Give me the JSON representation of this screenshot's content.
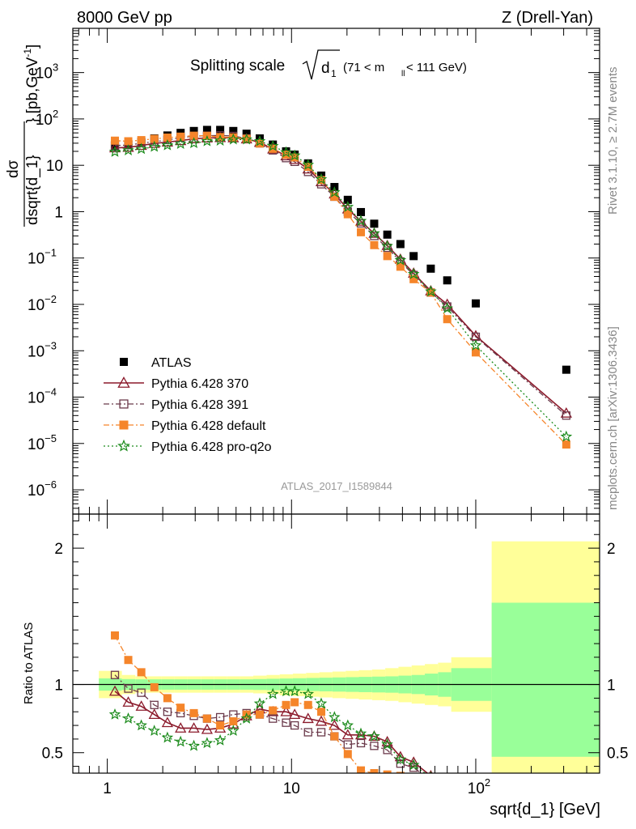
{
  "header": {
    "left": "8000 GeV pp",
    "right": "Z (Drell-Yan)"
  },
  "side_labels": {
    "rivet": "Rivet 3.1.10, ≥ 2.7M events",
    "mcplots": "mcplots.cern.ch [arXiv:1306.3436]"
  },
  "chart_data": [
    {
      "type": "scatter",
      "title": "Splitting scale √d₁ (71 < mₗₗ < 111 GeV)",
      "title_main": "Splitting scale",
      "title_sub": "(71 < m",
      "title_sub_idx": "ll",
      "title_sub_end": " < 111 GeV)",
      "ylabel": "dσ / dsqrt{d_1} [pb,GeV⁻¹]",
      "ylabel_num": "dσ",
      "ylabel_den": "dsqrt{d_1}",
      "ylabel_unit": "[pb,GeV",
      "ylabel_exp": "-1",
      "ylabel_close": "]",
      "xscale": "log",
      "yscale": "log",
      "xlim": [
        0.65,
        470
      ],
      "ylim": [
        3e-07,
        9000
      ],
      "watermark": "ATLAS_2017_I1589844",
      "legend_position": "bottom-left",
      "x_ticks": [
        {
          "value": 1,
          "label": "1"
        },
        {
          "value": 10,
          "label": "10"
        }
      ],
      "x_tick_100": {
        "value": 100,
        "base": "10",
        "exp": "2"
      },
      "y_ticks": [
        {
          "value": 1e-06,
          "base": "10",
          "exp": "−6"
        },
        {
          "value": 1e-05,
          "base": "10",
          "exp": "−5"
        },
        {
          "value": 0.0001,
          "base": "10",
          "exp": "−4"
        },
        {
          "value": 0.001,
          "base": "10",
          "exp": "−3"
        },
        {
          "value": 0.01,
          "base": "10",
          "exp": "−2"
        },
        {
          "value": 0.1,
          "base": "10",
          "exp": "−1"
        },
        {
          "value": 1,
          "base": "1",
          "exp": ""
        },
        {
          "value": 10,
          "base": "10",
          "exp": ""
        },
        {
          "value": 100,
          "base": "10",
          "exp": "2"
        },
        {
          "value": 1000,
          "base": "10",
          "exp": "3"
        }
      ],
      "x": [
        1.1,
        1.3,
        1.53,
        1.8,
        2.12,
        2.5,
        2.95,
        3.48,
        4.1,
        4.83,
        5.7,
        6.72,
        7.92,
        9.34,
        10.4,
        12.3,
        14.5,
        17.1,
        20.2,
        23.8,
        28.1,
        33.1,
        39.0,
        46.0,
        57.0,
        70.0,
        100.0,
        310.0
      ],
      "series": [
        {
          "name": "ATLAS",
          "color": "#000000",
          "marker": "square-filled",
          "values": [
            25,
            28,
            32,
            38,
            44,
            50,
            55,
            58,
            58,
            55,
            48,
            38,
            28,
            20,
            17,
            11,
            6,
            3.4,
            1.8,
            0.98,
            0.55,
            0.32,
            0.2,
            0.11,
            0.059,
            0.033,
            0.0105,
            0.00039
          ]
        },
        {
          "name": "Pythia 6.428 370",
          "color": "#8b1a2b",
          "marker": "triangle-open",
          "line": "solid",
          "values": [
            23.7,
            24.3,
            26.8,
            29.6,
            31.7,
            34.0,
            37.4,
            38.9,
            39.4,
            39.1,
            37.0,
            31.2,
            22.4,
            16.0,
            13.3,
            8.3,
            4.4,
            2.4,
            1.14,
            0.62,
            0.339,
            0.186,
            0.094,
            0.047,
            0.0195,
            0.01,
            0.0021,
            4.5e-05
          ]
        },
        {
          "name": "Pythia 6.428 391",
          "color": "#6b3a4b",
          "marker": "square-open",
          "line": "dashdot",
          "values": [
            26.8,
            27.2,
            30.1,
            32.3,
            35.2,
            39.5,
            42.5,
            43.5,
            44.1,
            42.9,
            37.9,
            29.7,
            21.0,
            14.3,
            11.9,
            7.2,
            3.9,
            2.1,
            1.0,
            0.56,
            0.3,
            0.166,
            0.084,
            0.043,
            0.018,
            0.009,
            0.002,
            4e-05
          ]
        },
        {
          "name": "Pythia 6.428 default",
          "color": "#f5852a",
          "marker": "square-filled",
          "line": "dashdot",
          "values": [
            34.0,
            33.0,
            34.9,
            37.2,
            39.6,
            41.5,
            43.5,
            43.3,
            40.6,
            40.0,
            37.4,
            29.6,
            22.7,
            17.0,
            14.8,
            9.3,
            4.8,
            2.1,
            0.88,
            0.36,
            0.19,
            0.11,
            0.065,
            0.035,
            0.018,
            0.0048,
            0.00092,
            9.5e-06
          ]
        },
        {
          "name": "Pythia 6.428 pro-q2o",
          "color": "#1a8a1a",
          "marker": "star-open",
          "line": "dotted",
          "values": [
            19.5,
            21.0,
            22.5,
            25.0,
            27.0,
            29.0,
            30.0,
            33.0,
            34.0,
            36.0,
            36.0,
            33.0,
            26.0,
            19.0,
            16.2,
            10.2,
            5.0,
            2.6,
            1.26,
            0.63,
            0.34,
            0.18,
            0.09,
            0.045,
            0.019,
            0.0082,
            0.0013,
            1.4e-05
          ]
        }
      ]
    },
    {
      "type": "scatter",
      "ylabel": "Ratio to ATLAS",
      "xlabel": "sqrt{d_1} [GeV]",
      "xscale": "log",
      "ylim": [
        0.35,
        2.25
      ],
      "reference_line": 1,
      "y_ticks": [
        {
          "value": 0.5,
          "label": "0.5"
        },
        {
          "value": 1,
          "label": "1"
        },
        {
          "value": 2,
          "label": "2"
        }
      ],
      "bands": {
        "edges": [
          0.9,
          1.2,
          1.42,
          1.66,
          1.96,
          2.31,
          2.73,
          3.22,
          3.79,
          4.47,
          5.27,
          6.2,
          7.32,
          8.63,
          10.17,
          11.99,
          14.15,
          16.68,
          19.67,
          23.2,
          27.36,
          32.26,
          38.05,
          44.87,
          52.92,
          62.41,
          73.6,
          122.0,
          470.0
        ],
        "stat_low": [
          0.955,
          0.96,
          0.962,
          0.962,
          0.962,
          0.962,
          0.962,
          0.962,
          0.962,
          0.962,
          0.962,
          0.96,
          0.958,
          0.956,
          0.954,
          0.952,
          0.95,
          0.948,
          0.946,
          0.944,
          0.942,
          0.94,
          0.935,
          0.93,
          0.92,
          0.91,
          0.88,
          0.47
        ],
        "stat_high": [
          1.045,
          1.04,
          1.038,
          1.038,
          1.038,
          1.038,
          1.038,
          1.038,
          1.038,
          1.038,
          1.038,
          1.04,
          1.042,
          1.044,
          1.046,
          1.048,
          1.05,
          1.052,
          1.054,
          1.056,
          1.058,
          1.06,
          1.065,
          1.07,
          1.08,
          1.09,
          1.12,
          1.6
        ],
        "sys_low": [
          0.9,
          0.93,
          0.94,
          0.94,
          0.94,
          0.94,
          0.94,
          0.94,
          0.94,
          0.94,
          0.94,
          0.935,
          0.93,
          0.92,
          0.915,
          0.91,
          0.905,
          0.9,
          0.895,
          0.89,
          0.885,
          0.88,
          0.87,
          0.86,
          0.85,
          0.84,
          0.8,
          0.35
        ],
        "sys_high": [
          1.1,
          1.07,
          1.06,
          1.06,
          1.06,
          1.06,
          1.06,
          1.06,
          1.06,
          1.06,
          1.06,
          1.065,
          1.07,
          1.075,
          1.08,
          1.085,
          1.09,
          1.095,
          1.1,
          1.105,
          1.11,
          1.12,
          1.13,
          1.14,
          1.15,
          1.16,
          1.2,
          2.05
        ]
      },
      "x": [
        1.1,
        1.3,
        1.53,
        1.8,
        2.12,
        2.5,
        2.95,
        3.48,
        4.1,
        4.83,
        5.7,
        6.72,
        7.92,
        9.34,
        10.4,
        12.3,
        14.5,
        17.1,
        20.2,
        23.8,
        28.1,
        33.1,
        39.0,
        46.0,
        57.0
      ],
      "series": [
        {
          "name": "Pythia 6.428 370",
          "values": [
            0.95,
            0.87,
            0.84,
            0.78,
            0.72,
            0.68,
            0.68,
            0.67,
            0.68,
            0.71,
            0.77,
            0.82,
            0.8,
            0.8,
            0.78,
            0.75,
            0.73,
            0.7,
            0.63,
            0.63,
            0.62,
            0.58,
            0.47,
            0.43,
            0.33
          ]
        },
        {
          "name": "Pythia 6.428 391",
          "values": [
            1.07,
            0.97,
            0.94,
            0.85,
            0.8,
            0.79,
            0.77,
            0.75,
            0.76,
            0.78,
            0.79,
            0.78,
            0.75,
            0.72,
            0.7,
            0.65,
            0.65,
            0.62,
            0.56,
            0.57,
            0.55,
            0.52,
            0.42,
            0.39,
            0.3
          ]
        },
        {
          "name": "Pythia 6.428 default",
          "values": [
            1.36,
            1.18,
            1.09,
            0.98,
            0.9,
            0.83,
            0.79,
            0.75,
            0.7,
            0.73,
            0.78,
            0.78,
            0.81,
            0.85,
            0.87,
            0.85,
            0.8,
            0.62,
            0.49,
            0.37,
            0.35,
            0.34,
            0.33,
            0.32,
            0.31
          ]
        },
        {
          "name": "Pythia 6.428 pro-q2o",
          "values": [
            0.78,
            0.75,
            0.7,
            0.66,
            0.61,
            0.58,
            0.55,
            0.57,
            0.59,
            0.66,
            0.75,
            0.86,
            0.93,
            0.95,
            0.95,
            0.93,
            0.86,
            0.76,
            0.7,
            0.64,
            0.62,
            0.56,
            0.45,
            0.41,
            0.32
          ]
        }
      ]
    }
  ]
}
